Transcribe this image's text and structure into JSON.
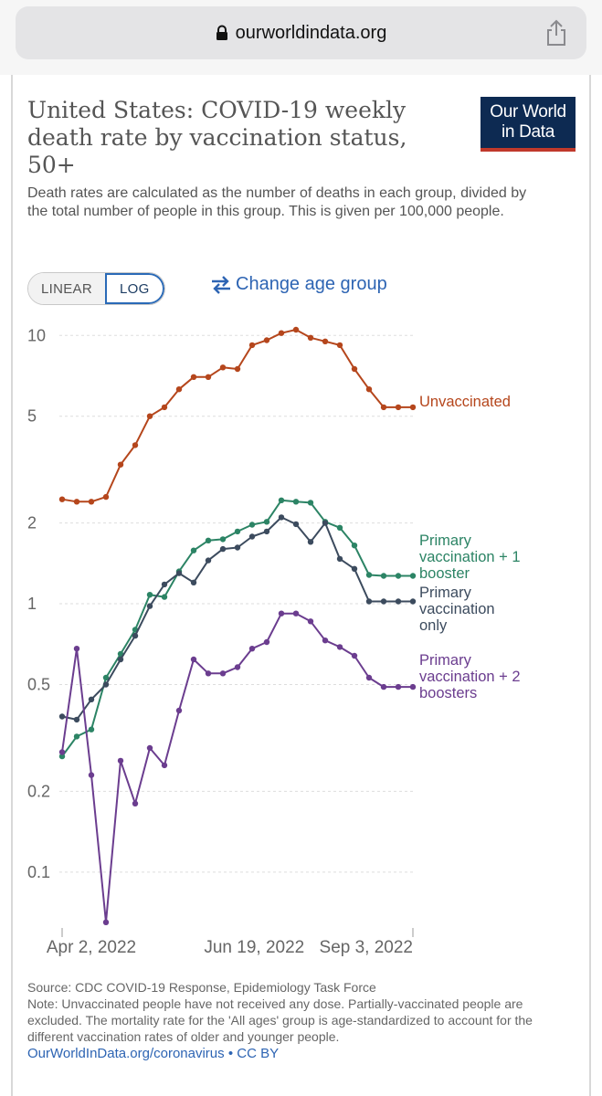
{
  "browser": {
    "url": "ourworldindata.org",
    "icons": {
      "lock": "lock-icon",
      "share": "share-icon"
    }
  },
  "header": {
    "title": "United States: COVID-19 weekly death rate by vaccination status, 50+",
    "subtitle": "Death rates are calculated as the number of deaths in each group, divided by the total number of people in this group. This is given per 100,000 people.",
    "logo_line1": "Our World",
    "logo_line2": "in Data"
  },
  "controls": {
    "linear_label": "LINEAR",
    "log_label": "LOG",
    "active_scale": "LOG",
    "change_age_label": "Change age group",
    "change_age_icon": "swap-arrows-icon"
  },
  "footer": {
    "source": "Source: CDC COVID-19 Response, Epidemiology Task Force",
    "note": "Note: Unvaccinated people have not received any dose. Partially-vaccinated people are excluded. The mortality rate for the 'All ages' group is age-standardized to account for the different vaccination rates of older and younger people.",
    "link_text": "OurWorldInData.org/coronavirus",
    "license": " • CC BY"
  },
  "chart_data": {
    "type": "line",
    "title": "United States: COVID-19 weekly death rate by vaccination status, 50+",
    "xlabel": "",
    "ylabel": "",
    "yscale": "log",
    "ylim": [
      0.06,
      12
    ],
    "yticks": [
      0.1,
      0.2,
      0.5,
      1,
      2,
      5,
      10
    ],
    "ytick_labels": [
      "0.1",
      "0.2",
      "0.5",
      "1",
      "2",
      "5",
      "10"
    ],
    "grid": "horizontal dashed",
    "legend": "inline labels at line ends (right)",
    "x_start": "2022-03-19",
    "x_tick_dates": [
      "2022-04-02",
      "2022-06-19",
      "2022-09-03"
    ],
    "x_tick_labels": [
      "Apr 2, 2022",
      "Jun 19, 2022",
      "Sep 3, 2022"
    ],
    "x": [
      "2022-03-19",
      "2022-03-26",
      "2022-04-02",
      "2022-04-09",
      "2022-04-16",
      "2022-04-23",
      "2022-04-30",
      "2022-05-07",
      "2022-05-14",
      "2022-05-21",
      "2022-05-28",
      "2022-06-04",
      "2022-06-11",
      "2022-06-18",
      "2022-06-25",
      "2022-07-02",
      "2022-07-09",
      "2022-07-16",
      "2022-07-23",
      "2022-07-30",
      "2022-08-06",
      "2022-08-13",
      "2022-08-20",
      "2022-08-27",
      "2022-09-03"
    ],
    "series": [
      {
        "name": "Unvaccinated",
        "color": "#b5461c",
        "values": [
          2.45,
          2.4,
          2.4,
          2.5,
          3.3,
          3.9,
          5.0,
          5.4,
          6.3,
          7.0,
          7.0,
          7.6,
          7.5,
          9.2,
          9.6,
          10.2,
          10.5,
          9.8,
          9.5,
          9.2,
          7.5,
          6.3,
          5.4,
          5.4,
          5.4
        ]
      },
      {
        "name": "Primary vaccination + 1 booster",
        "color": "#2c8465",
        "values": [
          0.27,
          0.32,
          0.34,
          0.53,
          0.65,
          0.8,
          1.08,
          1.06,
          1.32,
          1.58,
          1.72,
          1.74,
          1.86,
          1.97,
          2.02,
          2.43,
          2.4,
          2.38,
          2.02,
          1.92,
          1.65,
          1.28,
          1.27,
          1.27,
          1.27
        ]
      },
      {
        "name": "Primary vaccination only",
        "color": "#3c4b5e",
        "values": [
          0.38,
          0.37,
          0.44,
          0.5,
          0.62,
          0.76,
          0.98,
          1.18,
          1.3,
          1.2,
          1.45,
          1.6,
          1.62,
          1.78,
          1.86,
          2.1,
          1.98,
          1.7,
          2.0,
          1.47,
          1.35,
          1.02,
          1.02,
          1.02,
          1.02
        ]
      },
      {
        "name": "Primary vaccination + 2 boosters",
        "color": "#6b3d8f",
        "values": [
          0.28,
          0.68,
          0.23,
          0.065,
          0.26,
          0.18,
          0.29,
          0.25,
          0.4,
          0.62,
          0.55,
          0.55,
          0.58,
          0.68,
          0.72,
          0.92,
          0.92,
          0.86,
          0.73,
          0.69,
          0.64,
          0.53,
          0.49,
          0.49,
          0.49
        ]
      }
    ]
  }
}
